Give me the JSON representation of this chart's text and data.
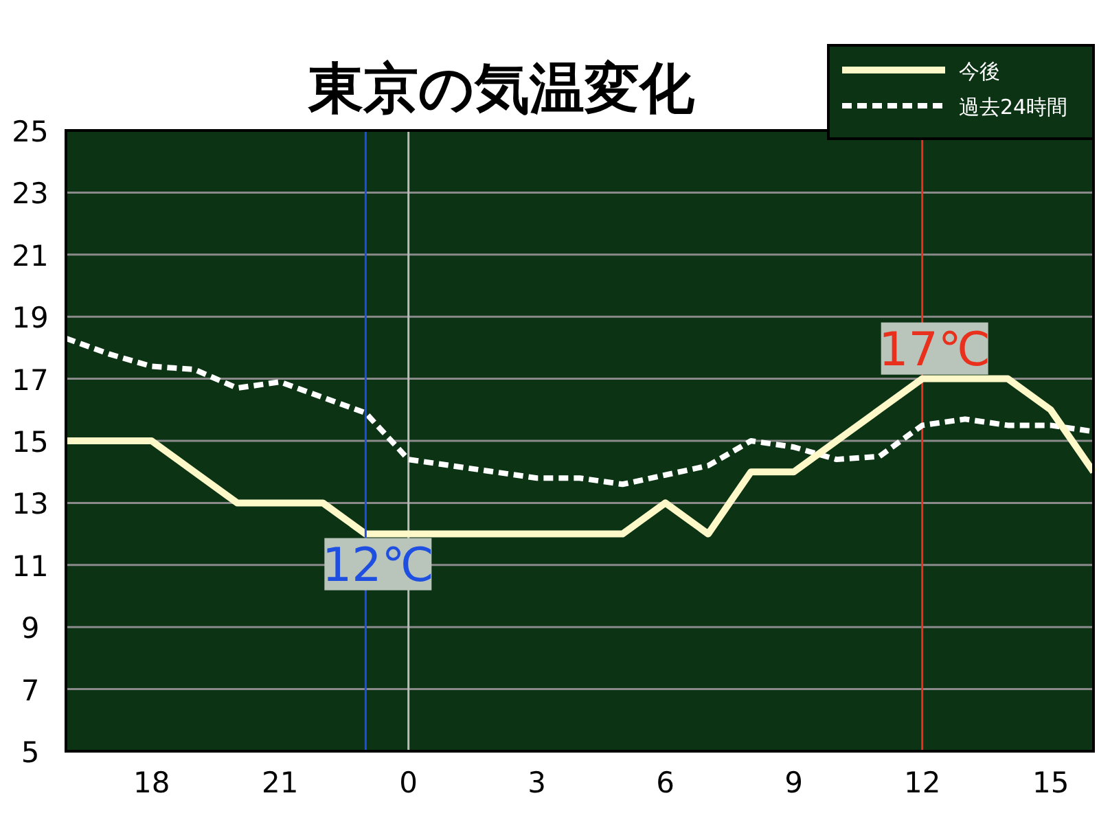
{
  "chart_data": {
    "type": "line",
    "title": "東京の気温変化",
    "categories": [
      null,
      null,
      "18",
      null,
      null,
      "21",
      null,
      null,
      "0",
      null,
      null,
      "3",
      null,
      null,
      "6",
      null,
      null,
      "9",
      null,
      null,
      "12",
      null,
      null,
      "15",
      null
    ],
    "series": [
      {
        "name": "今後",
        "color": "#fff8c8",
        "line_style": "solid",
        "values": [
          15,
          15,
          15,
          14,
          13,
          13,
          13,
          12,
          12,
          12,
          12,
          12,
          12,
          12,
          13,
          12,
          14,
          14,
          15,
          16,
          17,
          17,
          17,
          16,
          14
        ]
      },
      {
        "name": "過去24時間",
        "color": "#ffffff",
        "line_style": "dashed",
        "values": [
          18.3,
          17.8,
          17.4,
          17.3,
          16.7,
          16.9,
          16.4,
          15.9,
          14.4,
          14.2,
          14.0,
          13.8,
          13.8,
          13.6,
          13.9,
          14.2,
          15.0,
          14.8,
          14.4,
          14.5,
          15.5,
          15.7,
          15.5,
          15.5,
          15.3
        ]
      }
    ],
    "ylim": [
      5,
      25
    ],
    "yticks": [
      5,
      7,
      9,
      11,
      13,
      15,
      17,
      19,
      21,
      23,
      25
    ],
    "grid": "y",
    "legend": "top right",
    "ref_lines": [
      {
        "axis": "x",
        "value": "0",
        "color": "#bbbbbb"
      },
      {
        "axis": "x",
        "value": "12",
        "color": "#e8301c"
      }
    ],
    "annotations": [
      {
        "text": "12℃",
        "y": 12
      },
      {
        "text": "17℃",
        "x": "12",
        "y": 17
      }
    ]
  }
}
